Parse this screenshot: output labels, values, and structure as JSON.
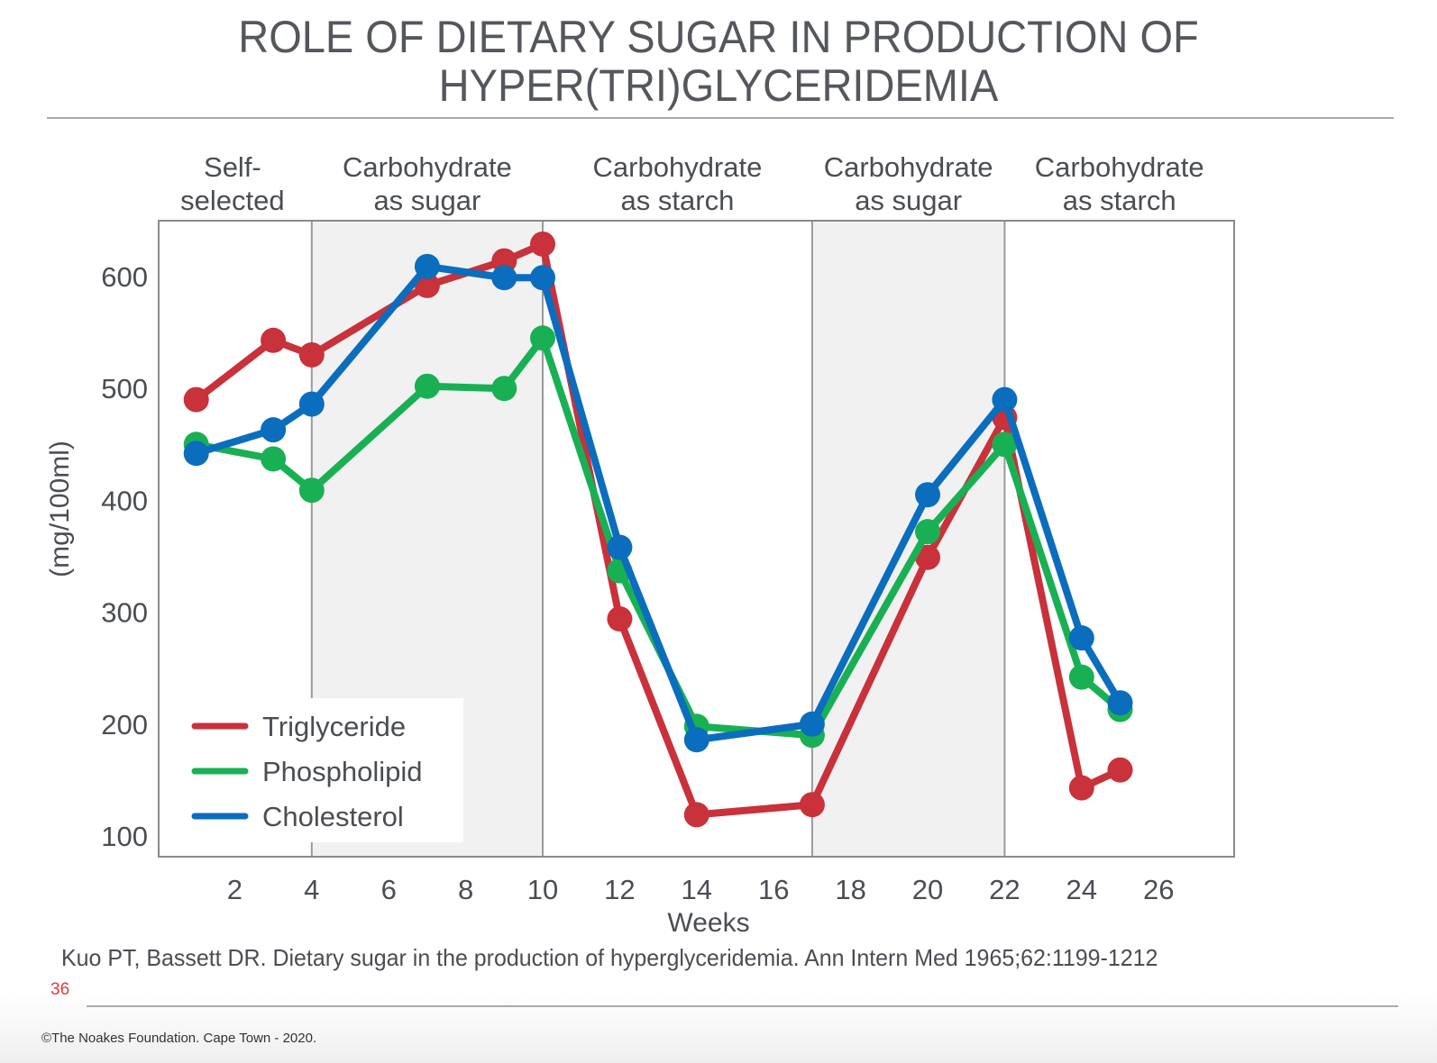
{
  "slide": {
    "title_line1": "ROLE OF DIETARY SUGAR IN PRODUCTION OF",
    "title_line2": "HYPER(TRI)GLYCERIDEMIA",
    "citation": "Kuo PT,  Bassett DR.  Dietary sugar in the production of hyperglyceridemia. Ann Intern Med 1965;62:1199-1212",
    "page_number": "36",
    "copyright": "©The Noakes Foundation. Cape Town - 2020."
  },
  "chart_data": {
    "type": "line",
    "title": "ROLE OF DIETARY SUGAR IN PRODUCTION OF HYPER(TRI)GLYCERIDEMIA",
    "xlabel": "Weeks",
    "ylabel": "(mg/100ml)",
    "xlim": [
      0,
      28
    ],
    "ylim": [
      70,
      645
    ],
    "x_ticks": [
      2,
      4,
      6,
      8,
      10,
      12,
      14,
      16,
      18,
      20,
      22,
      24,
      26
    ],
    "y_ticks": [
      100,
      200,
      300,
      400,
      500,
      600
    ],
    "grid": false,
    "legend_position": "bottom-left",
    "phases": [
      {
        "label_line1": "Self-",
        "label_line2": "selected",
        "start": 0,
        "end": 4,
        "shaded": false
      },
      {
        "label_line1": "Carbohydrate",
        "label_line2": "as sugar",
        "start": 4,
        "end": 10,
        "shaded": true
      },
      {
        "label_line1": "Carbohydrate",
        "label_line2": "as starch",
        "start": 10,
        "end": 17,
        "shaded": false
      },
      {
        "label_line1": "Carbohydrate",
        "label_line2": "as sugar",
        "start": 17,
        "end": 22,
        "shaded": true
      },
      {
        "label_line1": "Carbohydrate",
        "label_line2": "as starch",
        "start": 22,
        "end": 28,
        "shaded": false
      }
    ],
    "x": [
      1,
      3,
      4,
      7,
      9,
      10,
      12,
      14,
      17,
      20,
      22,
      24,
      25
    ],
    "series": [
      {
        "name": "Triglyceride",
        "color": "#c9313b",
        "values": [
          490,
          543,
          530,
          592,
          614,
          629,
          294,
          119,
          128,
          349,
          474,
          143,
          159
        ]
      },
      {
        "name": "Phospholipid",
        "color": "#19b054",
        "values": [
          450,
          437,
          409,
          502,
          500,
          545,
          337,
          198,
          190,
          372,
          450,
          242,
          213
        ]
      },
      {
        "name": "Cholesterol",
        "color": "#0b6dbd",
        "values": [
          442,
          463,
          486,
          609,
          599,
          599,
          358,
          186,
          200,
          405,
          490,
          277,
          219
        ]
      }
    ]
  }
}
